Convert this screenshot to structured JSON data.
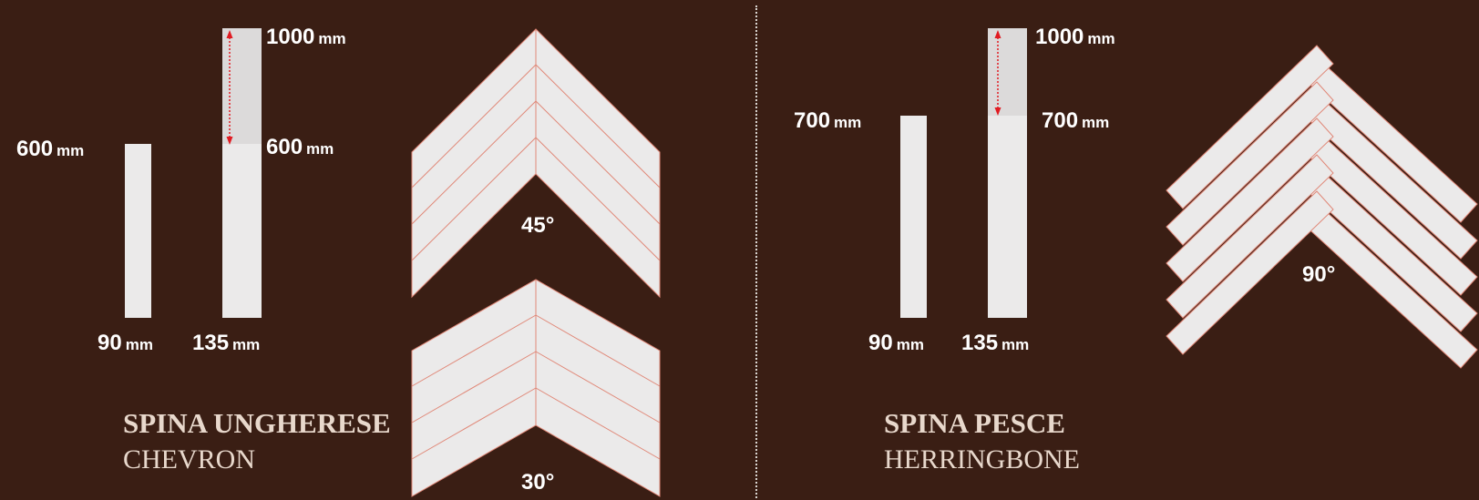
{
  "colors": {
    "background": "#3a1e14",
    "plank": "#ebeaea",
    "plank_extension": "#dcdada",
    "pattern_line": "#e08878",
    "arrow": "#e11b22",
    "title_text": "#e8d8cc"
  },
  "chevron_panel": {
    "title": "SPINA UNGHERESE",
    "subtitle": "CHEVRON",
    "dims": {
      "length_short": {
        "value": "600",
        "unit": "mm"
      },
      "length_long": {
        "value": "1000",
        "unit": "mm"
      },
      "length_mid": {
        "value": "600",
        "unit": "mm"
      },
      "width_narrow": {
        "value": "90",
        "unit": "mm"
      },
      "width_wide": {
        "value": "135",
        "unit": "mm"
      }
    },
    "angles": [
      "45°",
      "30°"
    ]
  },
  "herringbone_panel": {
    "title": "SPINA PESCE",
    "subtitle": "HERRINGBONE",
    "dims": {
      "length_short": {
        "value": "700",
        "unit": "mm"
      },
      "length_long": {
        "value": "1000",
        "unit": "mm"
      },
      "length_mid": {
        "value": "700",
        "unit": "mm"
      },
      "width_narrow": {
        "value": "90",
        "unit": "mm"
      },
      "width_wide": {
        "value": "135",
        "unit": "mm"
      }
    },
    "angle": "90°"
  }
}
